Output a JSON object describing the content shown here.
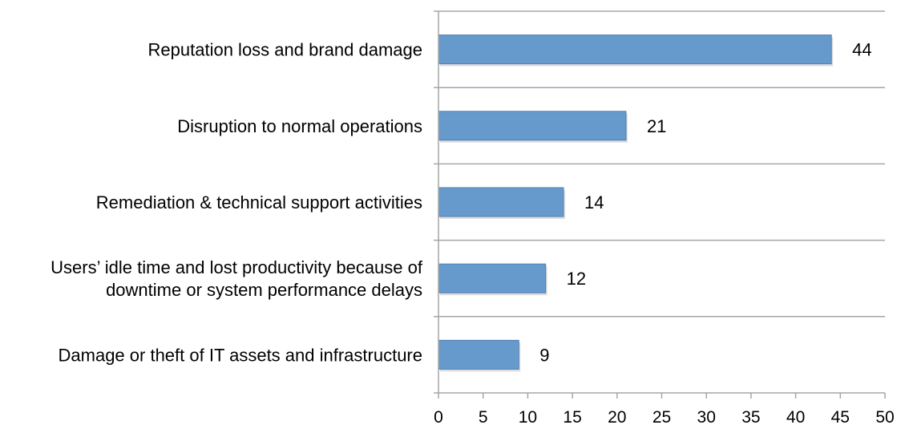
{
  "chart_data": {
    "type": "bar",
    "orientation": "horizontal",
    "categories": [
      [
        "Reputation loss and brand damage"
      ],
      [
        "Disruption to normal operations"
      ],
      [
        "Remediation & technical support activities"
      ],
      [
        "Users’ idle time and lost productivity because of",
        "downtime or system performance delays"
      ],
      [
        "Damage or theft of IT assets and infrastructure"
      ]
    ],
    "values": [
      44,
      21,
      14,
      12,
      9
    ],
    "xlim": [
      0,
      50
    ],
    "xticks": [
      0,
      5,
      10,
      15,
      20,
      25,
      30,
      35,
      40,
      45,
      50
    ],
    "title": "",
    "xlabel": "",
    "ylabel": "",
    "grid": "horizontal category separators",
    "legend": "none",
    "data_labels": true,
    "colors": {
      "bar_fill": "#6699CC",
      "bar_edge": "#4F7FB3",
      "axis": "#A6A6A6",
      "text": "#000000"
    }
  }
}
